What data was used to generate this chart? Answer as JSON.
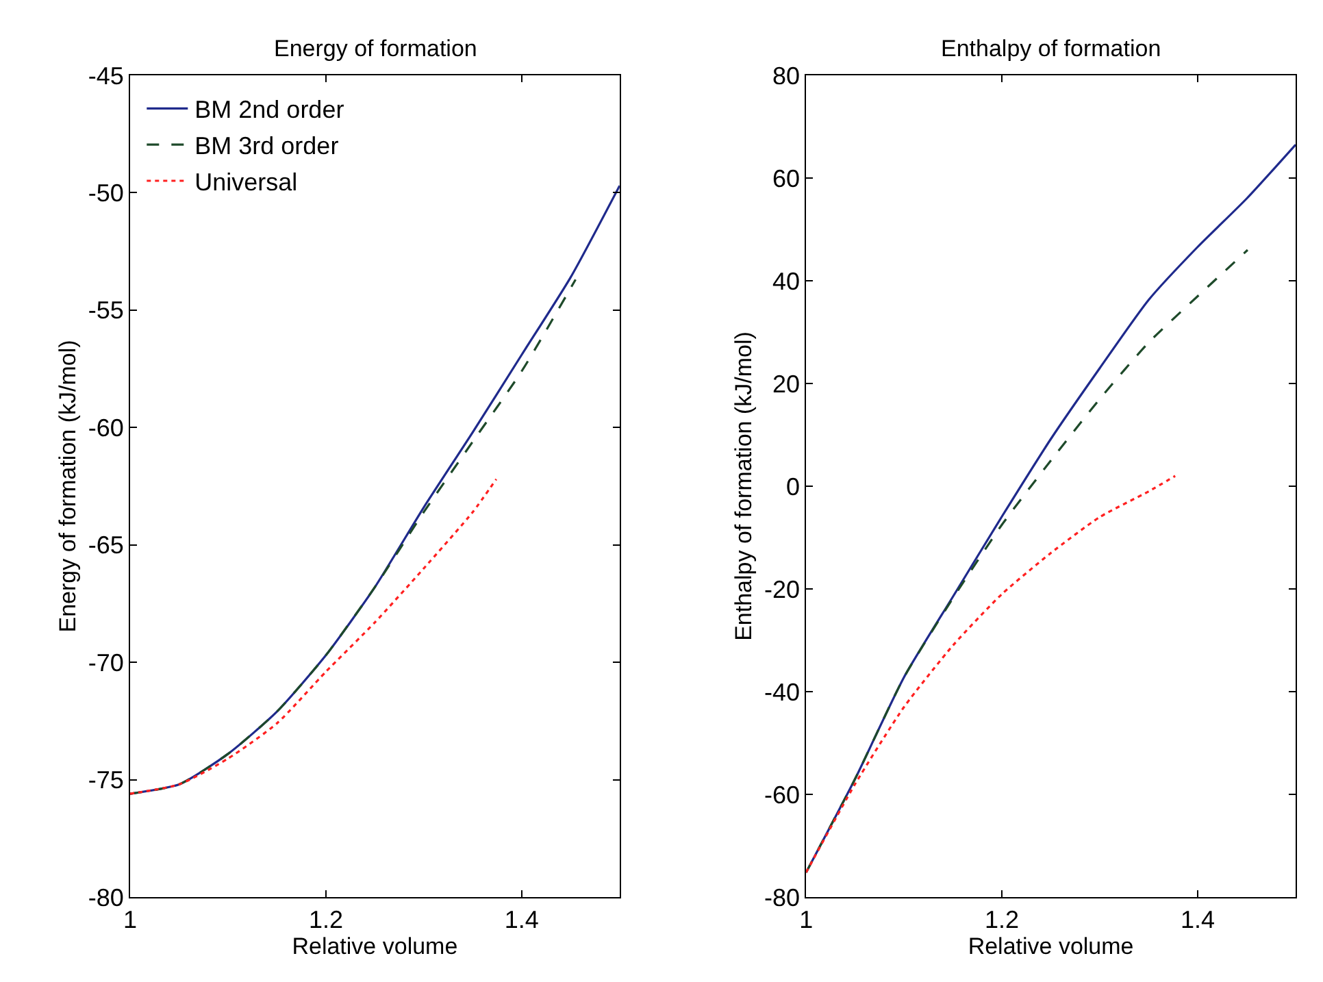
{
  "chart_data": [
    {
      "type": "line",
      "title": "Energy of formation",
      "xlabel": "Relative volume",
      "ylabel": "Energy of formation (kJ/mol)",
      "xlim": [
        1,
        1.5
      ],
      "xticks": [
        1,
        1.2,
        1.4
      ],
      "ylim": [
        -80,
        -45
      ],
      "yticks": [
        -80,
        -75,
        -70,
        -65,
        -60,
        -55,
        -50,
        -45
      ],
      "legend": "top left",
      "marker": "none",
      "series": [
        {
          "name": "BM 2nd order",
          "color": "#1f2a8c",
          "line_style": "solid",
          "x": [
            1,
            1.05,
            1.1,
            1.15,
            1.2,
            1.25,
            1.3,
            1.35,
            1.4,
            1.45,
            1.5
          ],
          "values": [
            -75.6,
            -75.2,
            -73.9,
            -72.1,
            -69.7,
            -66.8,
            -63.4,
            -60.2,
            -56.9,
            -53.6,
            -49.7
          ]
        },
        {
          "name": "BM 3rd order",
          "color": "#1e4a2a",
          "line_style": "dashed",
          "x": [
            1,
            1.05,
            1.1,
            1.15,
            1.2,
            1.25,
            1.3,
            1.35,
            1.4,
            1.455
          ],
          "values": [
            -75.6,
            -75.2,
            -73.9,
            -72.1,
            -69.7,
            -66.8,
            -63.6,
            -60.6,
            -57.6,
            -53.7
          ]
        },
        {
          "name": "Universal",
          "color": "#ff2020",
          "line_style": "dotted",
          "x": [
            1,
            1.05,
            1.1,
            1.15,
            1.2,
            1.25,
            1.3,
            1.35,
            1.374
          ],
          "values": [
            -75.6,
            -75.2,
            -74.1,
            -72.6,
            -70.4,
            -68.3,
            -66.0,
            -63.6,
            -62.2
          ]
        }
      ]
    },
    {
      "type": "line",
      "title": "Enthalpy of formation",
      "xlabel": "Relative volume",
      "ylabel": "Enthalpy of formation (kJ/mol)",
      "xlim": [
        1,
        1.5
      ],
      "xticks": [
        1,
        1.2,
        1.4
      ],
      "ylim": [
        -80,
        80
      ],
      "yticks": [
        -80,
        -60,
        -40,
        -20,
        0,
        20,
        40,
        60,
        80
      ],
      "legend": false,
      "marker": "none",
      "series": [
        {
          "color": "#1f2a8c",
          "line_style": "solid",
          "x": [
            1,
            1.05,
            1.1,
            1.15,
            1.2,
            1.25,
            1.3,
            1.35,
            1.4,
            1.45,
            1.5
          ],
          "values": [
            -75.2,
            -57,
            -37.2,
            -21.5,
            -5.9,
            9.2,
            23,
            36.3,
            46.6,
            56,
            66.5
          ]
        },
        {
          "color": "#1e4a2a",
          "line_style": "dashed",
          "x": [
            1,
            1.05,
            1.1,
            1.15,
            1.2,
            1.25,
            1.3,
            1.35,
            1.4,
            1.451
          ],
          "values": [
            -75.2,
            -57,
            -37.2,
            -21.8,
            -7.5,
            5,
            17,
            28,
            37,
            46
          ]
        },
        {
          "color": "#ff2020",
          "line_style": "dotted",
          "x": [
            1,
            1.05,
            1.1,
            1.15,
            1.2,
            1.25,
            1.3,
            1.35,
            1.377
          ],
          "values": [
            -75.2,
            -58,
            -43,
            -31,
            -21,
            -13,
            -6,
            -1,
            2
          ]
        }
      ]
    }
  ]
}
